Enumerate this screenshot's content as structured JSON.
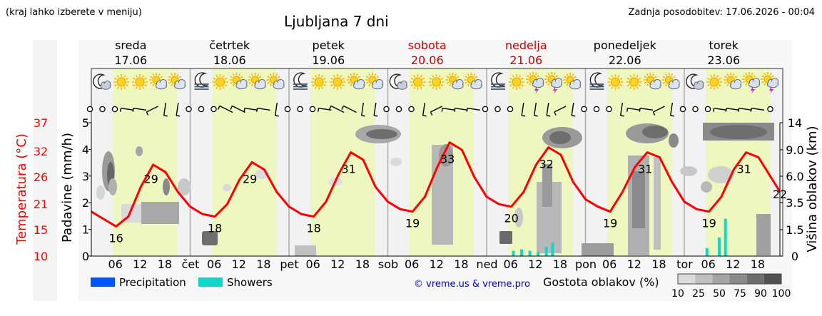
{
  "header": {
    "hint": "(kraj lahko izberete v meniju)",
    "title": "Ljubljana 7 dni",
    "updated": "Zadnja posodobitev: 17.06.2026 - 00:04"
  },
  "chart_data": {
    "type": "line",
    "days": [
      {
        "name": "sreda",
        "date": "17.06",
        "weekend": false,
        "short": "čet"
      },
      {
        "name": "četrtek",
        "date": "18.06",
        "weekend": false,
        "short": "pet"
      },
      {
        "name": "petek",
        "date": "19.06",
        "weekend": false,
        "short": "sob"
      },
      {
        "name": "sobota",
        "date": "20.06",
        "weekend": true,
        "short": "ned"
      },
      {
        "name": "nedelja",
        "date": "21.06",
        "weekend": true,
        "short": "pon"
      },
      {
        "name": "ponedeljek",
        "date": "22.06",
        "weekend": false,
        "short": "tor"
      },
      {
        "name": "torek",
        "date": "23.06",
        "weekend": false,
        "short": ""
      }
    ],
    "hour_ticks": [
      "06",
      "12",
      "18"
    ],
    "left_axis_temperature": {
      "label": "Temperatura (°C)",
      "ticks": [
        "10",
        "15",
        "21",
        "26",
        "32",
        "37"
      ],
      "range": [
        10,
        37
      ]
    },
    "left_axis_precipitation": {
      "label": "Padavine (mm/h)",
      "ticks": [
        "0",
        "1",
        "2",
        "3",
        "4",
        "5"
      ],
      "range": [
        0,
        5
      ]
    },
    "right_axis_cloud_height": {
      "label": "Višina oblakov (km)",
      "ticks": [
        "0",
        "1.5",
        "3.5",
        "6.0",
        "9.0",
        "14"
      ]
    },
    "temperature_min": [
      16,
      18,
      18,
      19,
      20,
      19,
      19
    ],
    "temperature_max": [
      29,
      29,
      31,
      33,
      32,
      31,
      31
    ],
    "temperature_end": 22,
    "temperature_series": [
      [
        0,
        19
      ],
      [
        3,
        17.5
      ],
      [
        6,
        16
      ],
      [
        9,
        18
      ],
      [
        12,
        24
      ],
      [
        15,
        28.5
      ],
      [
        18,
        27
      ],
      [
        21,
        23
      ],
      [
        24,
        20
      ],
      [
        27,
        18.5
      ],
      [
        30,
        18
      ],
      [
        33,
        20.5
      ],
      [
        36,
        25.5
      ],
      [
        39,
        29
      ],
      [
        42,
        27.5
      ],
      [
        45,
        23
      ],
      [
        48,
        20
      ],
      [
        51,
        18.5
      ],
      [
        54,
        18
      ],
      [
        57,
        21
      ],
      [
        60,
        26.5
      ],
      [
        63,
        31
      ],
      [
        66,
        29.5
      ],
      [
        69,
        24
      ],
      [
        72,
        21
      ],
      [
        75,
        19.5
      ],
      [
        78,
        19
      ],
      [
        81,
        22
      ],
      [
        84,
        28
      ],
      [
        87,
        33
      ],
      [
        90,
        31.5
      ],
      [
        93,
        26
      ],
      [
        96,
        22
      ],
      [
        99,
        20.5
      ],
      [
        102,
        20
      ],
      [
        105,
        23
      ],
      [
        108,
        28.5
      ],
      [
        111,
        32
      ],
      [
        114,
        30.5
      ],
      [
        117,
        25
      ],
      [
        120,
        21.5
      ],
      [
        123,
        20
      ],
      [
        126,
        19
      ],
      [
        129,
        23
      ],
      [
        132,
        28
      ],
      [
        135,
        31
      ],
      [
        138,
        30
      ],
      [
        141,
        25
      ],
      [
        144,
        21
      ],
      [
        147,
        19.5
      ],
      [
        150,
        19
      ],
      [
        153,
        22
      ],
      [
        156,
        27.5
      ],
      [
        159,
        31
      ],
      [
        162,
        30
      ],
      [
        165,
        26
      ],
      [
        168,
        22
      ]
    ],
    "precipitation": [
      {
        "hour": 149.5,
        "value": 0.3,
        "kind": "showers"
      },
      {
        "hour": 152.5,
        "value": 0.7,
        "kind": "showers"
      },
      {
        "hour": 154.0,
        "value": 1.4,
        "kind": "showers"
      },
      {
        "hour": 102.5,
        "value": 0.2,
        "kind": "showers"
      },
      {
        "hour": 104.5,
        "value": 0.25,
        "kind": "showers"
      },
      {
        "hour": 106.5,
        "value": 0.2,
        "kind": "showers"
      },
      {
        "hour": 108.5,
        "value": 0.15,
        "kind": "showers"
      },
      {
        "hour": 110.5,
        "value": 0.35,
        "kind": "showers"
      },
      {
        "hour": 112.0,
        "value": 0.5,
        "kind": "showers"
      }
    ],
    "legend": {
      "precipitation": "Precipitation",
      "showers": "Showers",
      "cloud_density_label": "Gostota oblakov (%)",
      "cloud_density_ticks": [
        "10",
        "25",
        "50",
        "75",
        "90",
        "100"
      ],
      "cloud_density_colors": [
        "#dcdcdc",
        "#c0c0c0",
        "#a5a5a5",
        "#8a8a8a",
        "#6e6e6e",
        "#505050"
      ],
      "credit": "© vreme.us & vreme.pro"
    },
    "colors": {
      "temperature": "#ff0000",
      "daylight": "#eef7c0",
      "night": "#f2f2f2",
      "precipitation": "#0055ff",
      "showers": "#10d8c8",
      "weekend_text": "#cc0000",
      "title": "#0000dd"
    },
    "weather_icons": [
      [
        "moon-cloud-icon",
        "sun-icon",
        "sun-icon",
        "sun-cloud-icon",
        "sun-cloud-icon"
      ],
      [
        "moon-fog-icon",
        "sun-icon",
        "sun-cloud-icon",
        "sun-cloud-icon",
        "sun-cloud-icon"
      ],
      [
        "moon-fog-icon",
        "sun-icon",
        "sun-icon",
        "sun-cloud-icon",
        "sun-cloud-icon"
      ],
      [
        "moon-cloud-icon",
        "sun-icon",
        "sun-icon",
        "sun-cloud-icon",
        "sun-cloud-icon"
      ],
      [
        "moon-fog-icon",
        "sun-icon",
        "sun-storm-icon",
        "sun-storm-icon",
        "sun-cloud-icon"
      ],
      [
        "moon-fog-icon",
        "sun-icon",
        "sun-icon",
        "sun-cloud-icon",
        "sun-cloud-icon"
      ],
      [
        "moon-cloud-icon",
        "sun-icon",
        "sun-cloud-icon",
        "sun-storm-icon",
        "sun-storm-icon"
      ]
    ],
    "wind": [
      [
        "calm",
        "calm",
        "calm",
        "wind-e",
        "wind-e",
        "wind-ne",
        "wind-n",
        "wind-n"
      ],
      [
        "calm",
        "calm",
        "calm",
        "wind-se",
        "wind-se",
        "wind-e",
        "wind-e",
        "wind-n"
      ],
      [
        "calm",
        "calm",
        "calm",
        "wind-e",
        "wind-se",
        "wind-se",
        "wind-n",
        "wind-n"
      ],
      [
        "calm",
        "calm",
        "calm",
        "wind-n",
        "wind-ne",
        "wind-e",
        "wind-e",
        "wind-e"
      ],
      [
        "calm",
        "calm",
        "calm",
        "wind-n",
        "wind-n",
        "wind-n",
        "wind-ne",
        "wind-n"
      ],
      [
        "calm",
        "calm",
        "calm",
        "wind-n",
        "wind-e",
        "wind-e",
        "wind-ne",
        "wind-n"
      ],
      [
        "calm",
        "calm",
        "calm",
        "wind-e",
        "wind-e",
        "wind-e",
        "wind-e",
        "calm"
      ]
    ]
  }
}
